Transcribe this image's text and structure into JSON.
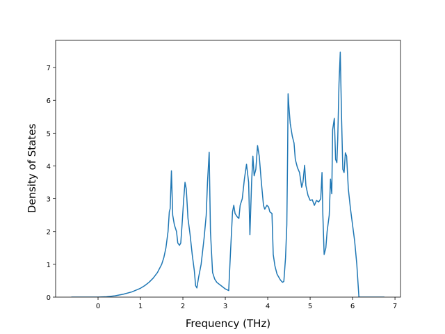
{
  "chart_data": {
    "type": "line",
    "x_label": "Frequency (THz)",
    "y_label": "Density of States",
    "x": [
      -0.63,
      0,
      0.2,
      0.4,
      0.6,
      0.8,
      1.0,
      1.1,
      1.2,
      1.3,
      1.4,
      1.5,
      1.55,
      1.6,
      1.65,
      1.68,
      1.7,
      1.73,
      1.76,
      1.8,
      1.85,
      1.88,
      1.92,
      1.95,
      1.98,
      2.02,
      2.05,
      2.08,
      2.12,
      2.17,
      2.22,
      2.27,
      2.3,
      2.33,
      2.37,
      2.43,
      2.5,
      2.55,
      2.58,
      2.62,
      2.65,
      2.7,
      2.75,
      2.8,
      2.9,
      3.0,
      3.08,
      3.12,
      3.17,
      3.2,
      3.23,
      3.28,
      3.32,
      3.35,
      3.4,
      3.45,
      3.5,
      3.55,
      3.58,
      3.62,
      3.65,
      3.68,
      3.72,
      3.76,
      3.8,
      3.85,
      3.9,
      3.93,
      3.98,
      4.02,
      4.05,
      4.1,
      4.13,
      4.17,
      4.22,
      4.3,
      4.35,
      4.38,
      4.42,
      4.45,
      4.47,
      4.48,
      4.5,
      4.53,
      4.58,
      4.62,
      4.65,
      4.7,
      4.75,
      4.8,
      4.83,
      4.87,
      4.9,
      4.95,
      5.0,
      5.05,
      5.1,
      5.15,
      5.2,
      5.25,
      5.28,
      5.3,
      5.33,
      5.37,
      5.4,
      5.45,
      5.48,
      5.51,
      5.53,
      5.57,
      5.6,
      5.63,
      5.65,
      5.68,
      5.71,
      5.74,
      5.77,
      5.8,
      5.83,
      5.86,
      5.9,
      5.95,
      6.0,
      6.05,
      6.1,
      6.15,
      6.3,
      6.75
    ],
    "series": [
      {
        "color": "#1f77b4",
        "values": [
          0,
          0,
          0.01,
          0.04,
          0.09,
          0.16,
          0.27,
          0.35,
          0.45,
          0.58,
          0.75,
          1.0,
          1.2,
          1.5,
          2.0,
          2.6,
          2.7,
          3.85,
          2.5,
          2.2,
          2.0,
          1.65,
          1.58,
          1.65,
          2.2,
          3.0,
          3.5,
          3.3,
          2.4,
          1.9,
          1.3,
          0.8,
          0.35,
          0.28,
          0.6,
          1.0,
          1.8,
          2.5,
          3.5,
          4.42,
          2.0,
          0.75,
          0.55,
          0.45,
          0.35,
          0.25,
          0.2,
          1.3,
          2.6,
          2.8,
          2.55,
          2.45,
          2.4,
          2.8,
          3.0,
          3.6,
          4.05,
          3.5,
          1.9,
          3.5,
          4.3,
          3.7,
          3.9,
          4.62,
          4.3,
          3.5,
          2.8,
          2.68,
          2.8,
          2.75,
          2.6,
          2.55,
          1.3,
          0.95,
          0.7,
          0.52,
          0.45,
          0.48,
          1.2,
          2.2,
          4.5,
          6.2,
          5.8,
          5.3,
          4.9,
          4.7,
          4.2,
          3.95,
          3.8,
          3.35,
          3.5,
          4.02,
          3.4,
          3.1,
          2.95,
          2.97,
          2.8,
          2.95,
          2.9,
          3.0,
          3.8,
          2.5,
          1.3,
          1.5,
          2.0,
          2.5,
          3.6,
          3.15,
          5.1,
          5.45,
          4.2,
          4.1,
          4.8,
          6.5,
          7.47,
          5.5,
          3.9,
          3.8,
          4.4,
          4.3,
          3.3,
          2.7,
          2.2,
          1.7,
          1.0,
          0,
          0,
          0
        ]
      }
    ],
    "xlim": [
      -1.0,
      7.13
    ],
    "xticks": [
      0,
      1,
      2,
      3,
      4,
      5,
      6,
      7
    ],
    "ylim": [
      0,
      7.83
    ],
    "yticks": [
      0,
      1,
      2,
      3,
      4,
      5,
      6,
      7
    ]
  }
}
